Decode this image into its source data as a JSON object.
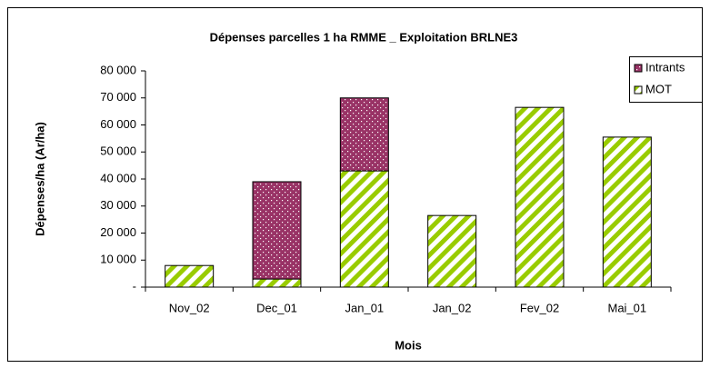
{
  "chart_data": {
    "type": "stacked-bar",
    "title": "Dépenses parcelles 1 ha RMME _ Exploitation BRLNE3",
    "x_label": "Mois",
    "y_label": "Dépenses/ha (Ar/ha)",
    "categories": [
      "Nov_02",
      "Dec_01",
      "Jan_01",
      "Jan_02",
      "Fev_02",
      "Mai_01"
    ],
    "series": [
      {
        "name": "MOT",
        "color": "#99cc00",
        "values": [
          8000,
          3000,
          43000,
          26500,
          66500,
          55500
        ]
      },
      {
        "name": "Intrants",
        "color": "#993366",
        "values": [
          0,
          36000,
          27000,
          0,
          0,
          0
        ]
      }
    ],
    "ylim": [
      0,
      80000
    ],
    "yticks": [
      {
        "value": 0,
        "label": "-"
      },
      {
        "value": 10000,
        "label": "10 000"
      },
      {
        "value": 20000,
        "label": "20 000"
      },
      {
        "value": 30000,
        "label": "30 000"
      },
      {
        "value": 40000,
        "label": "40 000"
      },
      {
        "value": 50000,
        "label": "50 000"
      },
      {
        "value": 60000,
        "label": "60 000"
      },
      {
        "value": 70000,
        "label": "70 000"
      },
      {
        "value": 80000,
        "label": "80 000"
      }
    ],
    "legend": "top-right",
    "grid": false
  }
}
